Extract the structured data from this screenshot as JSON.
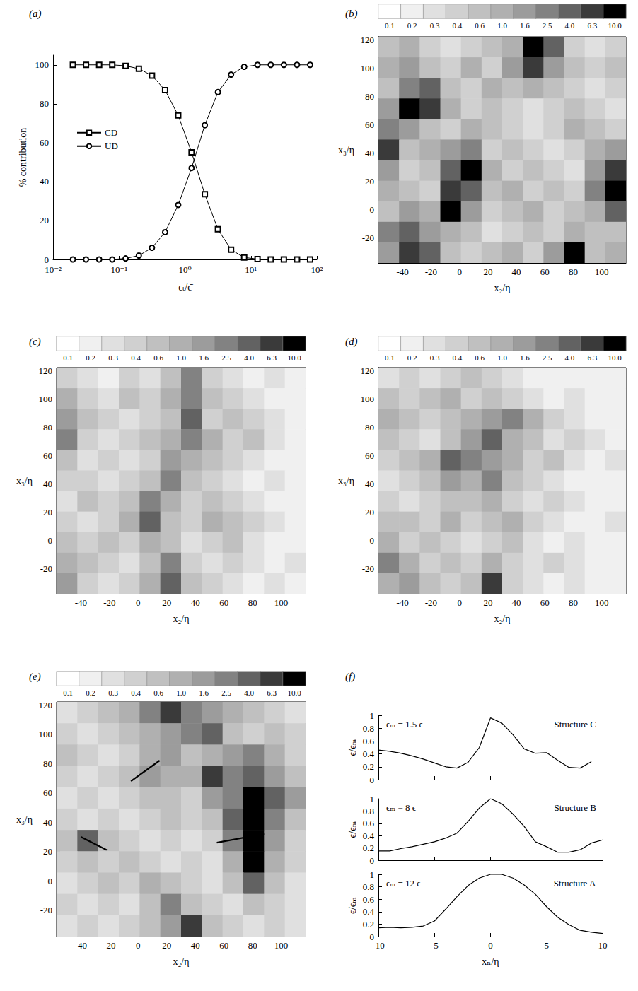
{
  "chart_data": [
    {
      "type": "line",
      "panel": "(a)",
      "xlabel": "ϵₜ/ϵ̄",
      "ylabel": "% contribution",
      "log": "x",
      "xlim": [
        0.01,
        100
      ],
      "xticks": [
        {
          "value": 0.01,
          "label": "10⁻²"
        },
        {
          "value": 0.1,
          "label": "10⁻¹"
        },
        {
          "value": 1,
          "label": "10⁰"
        },
        {
          "value": 10,
          "label": "10¹"
        },
        {
          "value": 100,
          "label": "10²"
        }
      ],
      "ylim": [
        0,
        105
      ],
      "yticks": [
        0,
        20,
        40,
        60,
        80,
        100
      ],
      "legend": "left",
      "x": [
        0.02,
        0.0316,
        0.05,
        0.079,
        0.126,
        0.2,
        0.316,
        0.5,
        0.79,
        1.26,
        2,
        3.16,
        5,
        7.9,
        12.6,
        20,
        31.6,
        50,
        79
      ],
      "series": [
        {
          "name": "CD",
          "color": "#000000",
          "marker": "square",
          "values": [
            100,
            100,
            100,
            100,
            99.5,
            98,
            94.5,
            87,
            74,
            55,
            33.5,
            15.5,
            5,
            1,
            0.2,
            0,
            0,
            0,
            0
          ]
        },
        {
          "name": "UD",
          "color": "#000000",
          "marker": "circle",
          "values": [
            0,
            0,
            0,
            0,
            0.5,
            2,
            6,
            14,
            28,
            47,
            69,
            86,
            95,
            99,
            100,
            100,
            100,
            100,
            100
          ]
        }
      ]
    },
    {
      "type": "contour",
      "panel": "(b)",
      "xlabel": "x₂/η",
      "ylabel": "x₃/η",
      "xlim": [
        -57,
        117
      ],
      "ylim": [
        -38,
        122
      ],
      "xticks": [
        -40,
        -20,
        0,
        20,
        40,
        60,
        80,
        100
      ],
      "yticks": [
        -20,
        0,
        20,
        40,
        60,
        80,
        100,
        120
      ],
      "colorbar": {
        "levels": [
          0.1,
          0.2,
          0.3,
          0.4,
          0.6,
          {
            "value": 1,
            "label": "1.0"
          },
          1.6,
          2.5,
          {
            "value": 4,
            "label": "4.0"
          },
          6.3,
          {
            "value": 10,
            "label": "10.0"
          }
        ],
        "colors": [
          "#ffffff",
          "#f0f0f0",
          "#e0e0e0",
          "#d0d0d0",
          "#c0c0c0",
          "#b0b0b0",
          "#9c9c9c",
          "#828282",
          "#626262",
          "#3a3a3a",
          "#000000"
        ]
      },
      "cells": [
        [
          0.8,
          1.3,
          0.5,
          0.35,
          0.5,
          0.8,
          1.3,
          12,
          5,
          0.5,
          0.35,
          0.5
        ],
        [
          1.3,
          2,
          0.8,
          0.5,
          1.3,
          0.5,
          2,
          8,
          2,
          0.8,
          0.5,
          0.8
        ],
        [
          0.8,
          3,
          5,
          0.8,
          0.5,
          1.3,
          0.8,
          1.3,
          0.8,
          0.5,
          0.35,
          0.5
        ],
        [
          2,
          12,
          8,
          1.3,
          0.5,
          0.8,
          0.5,
          0.35,
          0.5,
          0.8,
          0.5,
          0.35
        ],
        [
          3,
          2,
          0.8,
          0.5,
          1.3,
          0.8,
          0.5,
          0.35,
          0.5,
          1.3,
          0.8,
          0.5
        ],
        [
          8,
          0.8,
          1.3,
          2,
          3,
          0.5,
          0.8,
          0.5,
          0.35,
          0.5,
          1.3,
          2
        ],
        [
          2,
          0.5,
          0.8,
          5,
          12,
          1.3,
          0.5,
          0.8,
          0.5,
          0.35,
          2,
          8
        ],
        [
          1.3,
          0.8,
          0.5,
          8,
          5,
          0.8,
          1.3,
          0.5,
          0.8,
          0.5,
          3,
          12
        ],
        [
          0.8,
          2,
          1.3,
          12,
          2,
          0.5,
          0.8,
          1.3,
          0.5,
          0.8,
          1.3,
          5
        ],
        [
          3,
          5,
          2,
          1.3,
          0.8,
          0.35,
          0.5,
          0.8,
          0.5,
          1.3,
          0.8,
          0.8
        ],
        [
          2,
          8,
          5,
          0.8,
          0.5,
          0.8,
          1.3,
          0.5,
          2,
          12,
          0.8,
          1.3
        ]
      ]
    },
    {
      "type": "contour",
      "panel": "(c)",
      "xlabel": "x₂/η",
      "ylabel": "x₃/η",
      "xlim": [
        -57,
        117
      ],
      "ylim": [
        -38,
        122
      ],
      "xticks": [
        -40,
        -20,
        0,
        20,
        40,
        60,
        80,
        100
      ],
      "yticks": [
        -20,
        0,
        20,
        40,
        60,
        80,
        100,
        120
      ],
      "colorbar": {
        "levels": [
          0.1,
          0.2,
          0.3,
          0.4,
          0.6,
          {
            "value": 1,
            "label": "1.0"
          },
          1.6,
          2.5,
          {
            "value": 4,
            "label": "4.0"
          },
          6.3,
          {
            "value": 10,
            "label": "10.0"
          }
        ],
        "colors": [
          "#ffffff",
          "#f0f0f0",
          "#e0e0e0",
          "#d0d0d0",
          "#c0c0c0",
          "#b0b0b0",
          "#9c9c9c",
          "#828282",
          "#626262",
          "#3a3a3a",
          "#000000"
        ]
      },
      "cells": [
        [
          0.5,
          0.35,
          0.25,
          0.5,
          0.35,
          0.8,
          3,
          0.5,
          0.35,
          0.25,
          0.35,
          0.25
        ],
        [
          1.3,
          0.5,
          0.35,
          0.8,
          0.5,
          1.3,
          3,
          0.8,
          0.5,
          0.35,
          0.25,
          0.25
        ],
        [
          2,
          0.8,
          0.5,
          0.35,
          0.5,
          0.8,
          5,
          0.5,
          0.8,
          0.5,
          0.35,
          0.25
        ],
        [
          3,
          0.5,
          0.35,
          0.5,
          0.8,
          1.3,
          3,
          1.3,
          0.5,
          0.8,
          0.35,
          0.25
        ],
        [
          0.8,
          0.35,
          0.5,
          0.35,
          0.5,
          2,
          1.3,
          0.8,
          0.5,
          0.35,
          0.25,
          0.25
        ],
        [
          0.5,
          0.5,
          0.35,
          0.5,
          0.8,
          3,
          0.8,
          0.5,
          0.35,
          0.25,
          0.35,
          0.25
        ],
        [
          0.35,
          0.8,
          0.5,
          0.8,
          3,
          1.3,
          0.5,
          0.8,
          0.5,
          0.35,
          0.25,
          0.25
        ],
        [
          0.5,
          0.35,
          0.5,
          1.3,
          5,
          0.8,
          0.5,
          1.3,
          0.8,
          0.5,
          0.35,
          0.25
        ],
        [
          0.8,
          0.5,
          0.8,
          0.5,
          1.3,
          0.8,
          0.35,
          0.5,
          0.8,
          0.35,
          0.25,
          0.25
        ],
        [
          1.3,
          0.8,
          0.5,
          0.35,
          0.8,
          3,
          0.5,
          0.35,
          0.5,
          0.35,
          0.25,
          0.35
        ],
        [
          2,
          0.5,
          0.35,
          0.5,
          1.3,
          5,
          0.8,
          0.5,
          0.35,
          0.25,
          0.35,
          0.25
        ]
      ]
    },
    {
      "type": "contour",
      "panel": "(d)",
      "xlabel": "x₂/η",
      "ylabel": "x₃/η",
      "xlim": [
        -57,
        117
      ],
      "ylim": [
        -38,
        122
      ],
      "xticks": [
        -40,
        -20,
        0,
        20,
        40,
        60,
        80,
        100
      ],
      "yticks": [
        -20,
        0,
        20,
        40,
        60,
        80,
        100,
        120
      ],
      "colorbar": {
        "levels": [
          0.1,
          0.2,
          0.3,
          0.4,
          0.6,
          {
            "value": 1,
            "label": "1.0"
          },
          1.6,
          2.5,
          {
            "value": 4,
            "label": "4.0"
          },
          6.3,
          {
            "value": 10,
            "label": "10.0"
          }
        ],
        "colors": [
          "#ffffff",
          "#f0f0f0",
          "#e0e0e0",
          "#d0d0d0",
          "#c0c0c0",
          "#b0b0b0",
          "#9c9c9c",
          "#828282",
          "#626262",
          "#3a3a3a",
          "#000000"
        ]
      },
      "cells": [
        [
          0.35,
          0.5,
          0.35,
          0.5,
          0.8,
          0.5,
          0.35,
          0.25,
          0.25,
          0.25,
          0.25,
          0.25
        ],
        [
          0.8,
          0.5,
          0.8,
          1.3,
          0.5,
          0.8,
          0.5,
          0.35,
          0.25,
          0.35,
          0.25,
          0.25
        ],
        [
          1.3,
          0.8,
          0.5,
          0.8,
          1.3,
          2,
          3,
          1.3,
          0.5,
          0.35,
          0.25,
          0.25
        ],
        [
          0.8,
          0.5,
          0.35,
          0.8,
          2,
          5,
          1.3,
          0.8,
          0.35,
          0.5,
          0.35,
          0.25
        ],
        [
          0.5,
          0.8,
          1.3,
          5,
          3,
          2,
          1.3,
          0.5,
          0.8,
          0.35,
          0.25,
          0.35
        ],
        [
          0.35,
          0.5,
          0.8,
          2,
          1.3,
          3,
          0.8,
          0.5,
          0.35,
          0.25,
          0.25,
          0.25
        ],
        [
          0.5,
          0.35,
          0.5,
          0.8,
          0.8,
          1.3,
          0.5,
          0.35,
          0.5,
          0.35,
          0.25,
          0.25
        ],
        [
          0.8,
          0.8,
          0.5,
          1.3,
          0.5,
          0.8,
          1.3,
          0.5,
          0.35,
          0.25,
          0.25,
          0.35
        ],
        [
          1.3,
          0.5,
          0.8,
          0.5,
          0.35,
          0.5,
          0.8,
          0.35,
          0.25,
          0.35,
          0.25,
          0.25
        ],
        [
          3,
          1.3,
          0.5,
          0.8,
          0.5,
          1.3,
          0.5,
          0.35,
          0.5,
          0.35,
          0.25,
          0.25
        ],
        [
          1.3,
          2,
          0.8,
          0.5,
          0.8,
          8,
          0.5,
          0.35,
          0.25,
          0.35,
          0.25,
          0.25
        ]
      ]
    },
    {
      "type": "contour",
      "panel": "(e)",
      "xlabel": "x₂/η",
      "ylabel": "x₃/η",
      "xlim": [
        -57,
        117
      ],
      "ylim": [
        -38,
        122
      ],
      "xticks": [
        -40,
        -20,
        0,
        20,
        40,
        60,
        80,
        100
      ],
      "yticks": [
        -20,
        0,
        20,
        40,
        60,
        80,
        100,
        120
      ],
      "colorbar": {
        "levels": [
          0.1,
          0.2,
          0.3,
          0.4,
          0.6,
          {
            "value": 1,
            "label": "1.0"
          },
          1.6,
          2.5,
          {
            "value": 4,
            "label": "4.0"
          },
          6.3,
          {
            "value": 10,
            "label": "10.0"
          }
        ],
        "colors": [
          "#ffffff",
          "#f0f0f0",
          "#e0e0e0",
          "#d0d0d0",
          "#c0c0c0",
          "#b0b0b0",
          "#9c9c9c",
          "#828282",
          "#626262",
          "#3a3a3a",
          "#000000"
        ]
      },
      "cells": [
        [
          0.35,
          0.5,
          0.8,
          1.3,
          3,
          8,
          3,
          2,
          1.3,
          0.8,
          0.5,
          0.35
        ],
        [
          0.5,
          0.35,
          0.5,
          0.8,
          1.3,
          2,
          3,
          5,
          0.8,
          0.5,
          0.8,
          0.5
        ],
        [
          0.8,
          0.5,
          0.35,
          0.5,
          1.3,
          2,
          0.8,
          1.3,
          2,
          3,
          1.3,
          0.5
        ],
        [
          0.5,
          0.35,
          0.5,
          0.8,
          2,
          1.3,
          1.3,
          8,
          3,
          5,
          2,
          0.8
        ],
        [
          0.35,
          0.5,
          0.35,
          0.5,
          0.8,
          0.8,
          0.5,
          2,
          3,
          12,
          5,
          2
        ],
        [
          0.5,
          0.35,
          0.5,
          0.35,
          0.5,
          0.8,
          0.5,
          0.8,
          5,
          12,
          3,
          0.8
        ],
        [
          0.8,
          5,
          0.8,
          0.5,
          0.35,
          0.5,
          0.35,
          0.5,
          3,
          12,
          2,
          0.5
        ],
        [
          0.5,
          0.8,
          0.5,
          0.8,
          0.5,
          0.35,
          0.5,
          0.35,
          1.3,
          12,
          1.3,
          0.5
        ],
        [
          0.35,
          0.5,
          0.8,
          0.5,
          1.3,
          0.8,
          0.5,
          0.35,
          0.8,
          5,
          0.8,
          0.35
        ],
        [
          0.5,
          0.35,
          0.5,
          0.35,
          0.8,
          3,
          0.8,
          0.5,
          0.35,
          0.8,
          0.5,
          0.35
        ],
        [
          0.35,
          0.5,
          0.35,
          0.5,
          0.8,
          2,
          8,
          0.8,
          0.5,
          0.35,
          0.5,
          0.35
        ]
      ],
      "cuts": [
        [
          55,
          26,
          88,
          32
        ],
        [
          -5,
          68,
          15,
          82
        ],
        [
          -40,
          30,
          -22,
          21
        ]
      ]
    },
    {
      "type": "line",
      "panel": "(f)",
      "annotations": [
        "ϵₘ = 1.5 ϵ",
        "Structure C"
      ],
      "ylabel": "ϵ/ϵₘ",
      "xlim": [
        -10,
        10
      ],
      "ylim": [
        0,
        1
      ],
      "xticks": [
        -10,
        -5,
        0,
        5,
        10
      ],
      "yticks": [
        0,
        0.2,
        0.4,
        0.6,
        0.8,
        1
      ],
      "tick_labels": "y",
      "color": "#000000",
      "x": [
        -10,
        -9,
        -8,
        -7,
        -6,
        -5,
        -4,
        -3,
        -2,
        -1,
        0,
        1,
        2,
        3,
        4,
        5,
        6,
        7,
        8,
        9
      ],
      "values": [
        0.46,
        0.44,
        0.41,
        0.37,
        0.32,
        0.26,
        0.2,
        0.18,
        0.27,
        0.5,
        0.96,
        0.88,
        0.7,
        0.48,
        0.41,
        0.42,
        0.3,
        0.19,
        0.18,
        0.28
      ]
    },
    {
      "type": "line",
      "annotations": [
        "ϵₘ = 8 ϵ",
        "Structure B"
      ],
      "ylabel": "ϵ/ϵₘ",
      "xlim": [
        -10,
        10
      ],
      "ylim": [
        0,
        1
      ],
      "xticks": [
        -10,
        -5,
        0,
        5,
        10
      ],
      "yticks": [
        0,
        0.2,
        0.4,
        0.6,
        0.8,
        1
      ],
      "tick_labels": "y",
      "color": "#000000",
      "x": [
        -10,
        -9,
        -8,
        -7,
        -6,
        -5,
        -4,
        -3,
        -2,
        -1,
        0,
        1,
        2,
        3,
        4,
        5,
        6,
        7,
        8,
        9,
        10
      ],
      "values": [
        0.15,
        0.15,
        0.19,
        0.22,
        0.26,
        0.3,
        0.36,
        0.44,
        0.63,
        0.85,
        1,
        0.92,
        0.75,
        0.55,
        0.3,
        0.22,
        0.13,
        0.13,
        0.17,
        0.28,
        0.33
      ]
    },
    {
      "type": "line",
      "annotations": [
        "ϵₘ = 12 ϵ",
        "Structure A"
      ],
      "ylabel": "ϵ/ϵₘ",
      "xlabel": "xₙ/η",
      "xlim": [
        -10,
        10
      ],
      "ylim": [
        0,
        1
      ],
      "xticks": [
        -10,
        -5,
        0,
        5,
        10
      ],
      "yticks": [
        0,
        0.2,
        0.4,
        0.6,
        0.8,
        1
      ],
      "color": "#000000",
      "x": [
        -10,
        -9,
        -8,
        -7,
        -6,
        -5,
        -4,
        -3,
        -2,
        -1,
        0,
        1,
        2,
        3,
        4,
        5,
        6,
        7,
        8,
        9,
        10
      ],
      "values": [
        0.14,
        0.15,
        0.14,
        0.15,
        0.17,
        0.25,
        0.44,
        0.64,
        0.82,
        0.94,
        1,
        1,
        0.94,
        0.83,
        0.68,
        0.48,
        0.31,
        0.19,
        0.1,
        0.07,
        0.05
      ]
    }
  ]
}
